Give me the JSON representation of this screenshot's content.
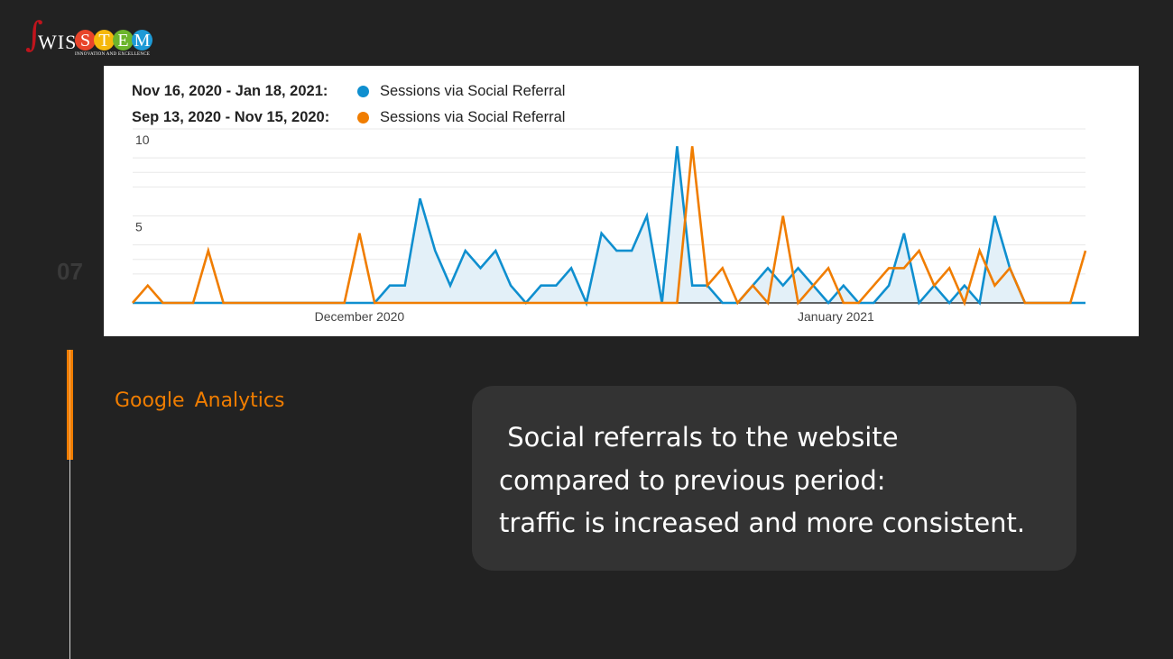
{
  "logo": {
    "text": "SWISSTEM",
    "wis": "WIS",
    "stem": [
      "S",
      "T",
      "E",
      "M"
    ],
    "tagline": "INNOVATION AND EXCELLENCE"
  },
  "slide_number": "07",
  "section_title": "Google  Analytics",
  "summary": " Social referrals to the website\ncompared to previous period:\ntraffic is increased and more consistent.",
  "colors": {
    "current": "#0f8fcf",
    "previous": "#f07d00",
    "accent": "#f07d00",
    "background": "#222222"
  },
  "chart_data": {
    "type": "line",
    "legend": [
      {
        "range": "Nov 16, 2020 - Jan 18, 2021:",
        "label": "Sessions via Social Referral",
        "color": "#0f8fcf"
      },
      {
        "range": "Sep 13, 2020 - Nov 15, 2020:",
        "label": "Sessions via Social Referral",
        "color": "#f07d00"
      }
    ],
    "x_ticks": [
      {
        "label": "December 2020",
        "index": 15
      },
      {
        "label": "January 2021",
        "index": 46.5
      }
    ],
    "y_ticks": [
      {
        "label": "10",
        "value": 10
      },
      {
        "label": "5",
        "value": 5
      }
    ],
    "ylim": [
      0,
      10
    ],
    "grid": true,
    "series": [
      {
        "name": "Nov 16, 2020 - Jan 18, 2021",
        "color": "#0f8fcf",
        "area": true,
        "values": [
          0,
          0,
          0,
          0,
          0,
          0,
          0,
          0,
          0,
          0,
          0,
          0,
          0,
          0,
          0,
          0,
          0,
          1,
          1,
          6,
          3,
          1,
          3,
          2,
          3,
          1,
          0,
          1,
          1,
          2,
          0,
          4,
          3,
          3,
          5,
          0,
          9,
          1,
          1,
          0,
          0,
          1,
          2,
          1,
          2,
          1,
          0,
          1,
          0,
          0,
          1,
          4,
          0,
          1,
          0,
          1,
          0,
          5,
          2,
          0,
          0,
          0,
          0,
          0
        ]
      },
      {
        "name": "Sep 13, 2020 - Nov 15, 2020",
        "color": "#f07d00",
        "area": false,
        "values": [
          0,
          1,
          0,
          0,
          0,
          3,
          0,
          0,
          0,
          0,
          0,
          0,
          0,
          0,
          0,
          4,
          0,
          0,
          0,
          0,
          0,
          0,
          0,
          0,
          0,
          0,
          0,
          0,
          0,
          0,
          0,
          0,
          0,
          0,
          0,
          0,
          0,
          9,
          1,
          2,
          0,
          1,
          0,
          5,
          0,
          1,
          2,
          0,
          0,
          1,
          2,
          2,
          3,
          1,
          2,
          0,
          3,
          1,
          2,
          0,
          0,
          0,
          0,
          3
        ]
      }
    ]
  }
}
